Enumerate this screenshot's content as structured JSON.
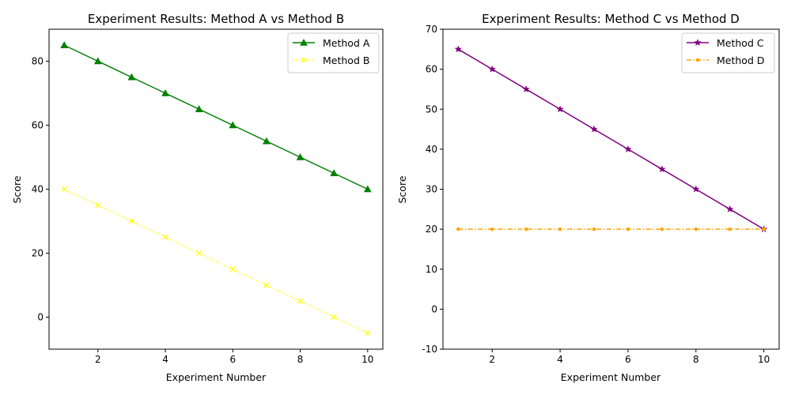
{
  "chart_data": [
    {
      "type": "line",
      "title": "Experiment Results: Method A vs Method B",
      "xlabel": "Experiment Number",
      "ylabel": "Score",
      "xlim": [
        0.55,
        10.45
      ],
      "ylim": [
        -10,
        90
      ],
      "xticks": [
        2,
        4,
        6,
        8,
        10
      ],
      "yticks": [
        0,
        20,
        40,
        60,
        80
      ],
      "grid": false,
      "legend": "top-right",
      "x": [
        1,
        2,
        3,
        4,
        5,
        6,
        7,
        8,
        9,
        10
      ],
      "series": [
        {
          "name": "Method A",
          "values": [
            85,
            80,
            75,
            70,
            65,
            60,
            55,
            50,
            45,
            40
          ],
          "color": "#008000",
          "marker": "triangle",
          "linestyle": "solid"
        },
        {
          "name": "Method B",
          "values": [
            40,
            35,
            30,
            25,
            20,
            15,
            10,
            5,
            0,
            -5
          ],
          "color": "#ffff00",
          "marker": "x",
          "linestyle": "dotted"
        }
      ]
    },
    {
      "type": "line",
      "title": "Experiment Results: Method C vs Method D",
      "xlabel": "Experiment Number",
      "ylabel": "Score",
      "xlim": [
        0.55,
        10.45
      ],
      "ylim": [
        -10,
        70
      ],
      "xticks": [
        2,
        4,
        6,
        8,
        10
      ],
      "yticks": [
        -10,
        0,
        10,
        20,
        30,
        40,
        50,
        60,
        70
      ],
      "grid": false,
      "legend": "top-right",
      "x": [
        1,
        2,
        3,
        4,
        5,
        6,
        7,
        8,
        9,
        10
      ],
      "series": [
        {
          "name": "Method C",
          "values": [
            65,
            60,
            55,
            50,
            45,
            40,
            35,
            30,
            25,
            20
          ],
          "color": "#800080",
          "marker": "star",
          "linestyle": "solid"
        },
        {
          "name": "Method D",
          "values": [
            20,
            20,
            20,
            20,
            20,
            20,
            20,
            20,
            20,
            20
          ],
          "color": "#ffa500",
          "marker": "dot",
          "linestyle": "dashdot"
        }
      ]
    }
  ]
}
